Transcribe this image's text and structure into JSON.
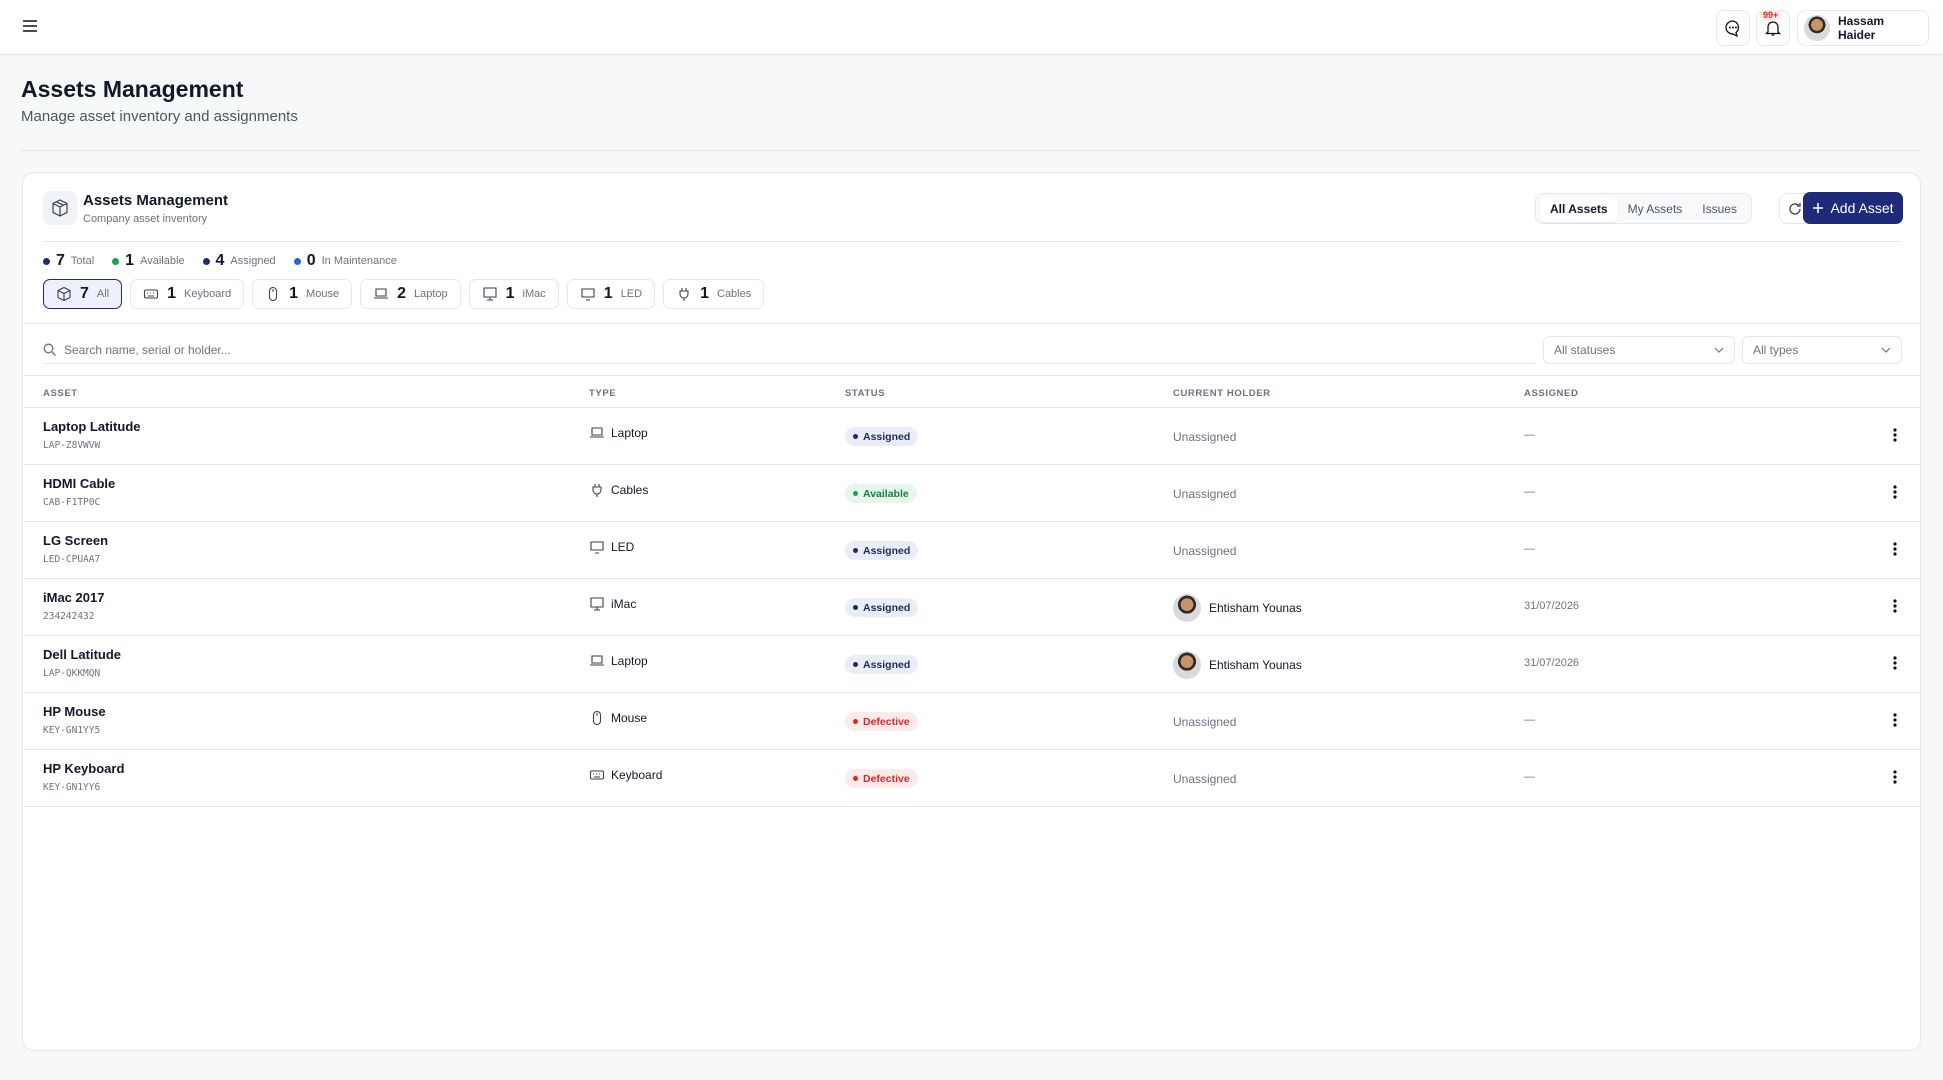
{
  "header": {
    "user_name": "Hassam Haider",
    "notification_badge": "99+"
  },
  "page": {
    "title": "Assets Management",
    "subtitle": "Manage asset inventory and assignments"
  },
  "card": {
    "title": "Assets Management",
    "subtitle": "Company asset inventory",
    "tabs": [
      "All Assets",
      "My Assets",
      "Issues"
    ],
    "add_button": "Add Asset"
  },
  "stats": [
    {
      "value": "7",
      "label": "Total"
    },
    {
      "value": "1",
      "label": "Available"
    },
    {
      "value": "4",
      "label": "Assigned"
    },
    {
      "value": "0",
      "label": "In Maintenance"
    }
  ],
  "filters": [
    {
      "count": "7",
      "label": "All"
    },
    {
      "count": "1",
      "label": "Keyboard"
    },
    {
      "count": "1",
      "label": "Mouse"
    },
    {
      "count": "2",
      "label": "Laptop"
    },
    {
      "count": "1",
      "label": "iMac"
    },
    {
      "count": "1",
      "label": "LED"
    },
    {
      "count": "1",
      "label": "Cables"
    }
  ],
  "search": {
    "placeholder": "Search name, serial or holder...",
    "status_select": "All statuses",
    "type_select": "All types"
  },
  "table": {
    "columns": [
      "ASSET",
      "TYPE",
      "STATUS",
      "CURRENT HOLDER",
      "ASSIGNED"
    ],
    "rows": [
      {
        "name": "Laptop Latitude",
        "serial": "LAP-Z8VWVW",
        "type": "Laptop",
        "status": "Assigned",
        "holder": "Unassigned",
        "assigned": "—"
      },
      {
        "name": "HDMI Cable",
        "serial": "CAB-F1TP0C",
        "type": "Cables",
        "status": "Available",
        "holder": "Unassigned",
        "assigned": "—"
      },
      {
        "name": "LG Screen",
        "serial": "LED-CPUAA7",
        "type": "LED",
        "status": "Assigned",
        "holder": "Unassigned",
        "assigned": "—"
      },
      {
        "name": "iMac 2017",
        "serial": "234242432",
        "type": "iMac",
        "status": "Assigned",
        "holder": "Ehtisham Younas",
        "assigned": "31/07/2026"
      },
      {
        "name": "Dell Latitude",
        "serial": "LAP-QKKMQN",
        "type": "Laptop",
        "status": "Assigned",
        "holder": "Ehtisham Younas",
        "assigned": "31/07/2026"
      },
      {
        "name": "HP Mouse",
        "serial": "KEY-GN1YY5",
        "type": "Mouse",
        "status": "Defective",
        "holder": "Unassigned",
        "assigned": "—"
      },
      {
        "name": "HP Keyboard",
        "serial": "KEY-GN1YY6",
        "type": "Keyboard",
        "status": "Defective",
        "holder": "Unassigned",
        "assigned": "—"
      }
    ]
  }
}
